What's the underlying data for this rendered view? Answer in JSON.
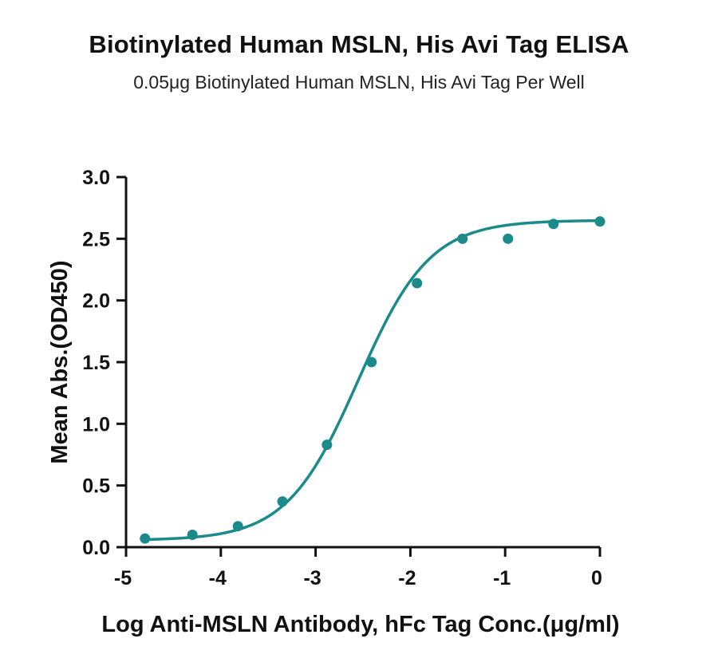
{
  "chart_data": {
    "type": "scatter",
    "title": "Biotinylated Human MSLN, His Avi Tag ELISA",
    "subtitle": "0.05μg Biotinylated Human MSLN, His Avi Tag Per Well",
    "xlabel": "Log Anti-MSLN Antibody, hFc Tag Conc.(μg/ml)",
    "ylabel": "Mean Abs.(OD450)",
    "xlim": [
      -5,
      0
    ],
    "ylim": [
      0,
      3.0
    ],
    "xticks": [
      "-5",
      "-4",
      "-3",
      "-2",
      "-1",
      "0"
    ],
    "yticks": [
      "0.0",
      "0.5",
      "1.0",
      "1.5",
      "2.0",
      "2.5",
      "3.0"
    ],
    "grid": false,
    "color": "#1a8a8a",
    "series": [
      {
        "x": [
          -4.8,
          -4.3,
          -3.82,
          -3.35,
          -2.88,
          -2.41,
          -1.93,
          -1.45,
          -0.97,
          -0.49,
          0.0
        ],
        "y": [
          0.07,
          0.1,
          0.17,
          0.37,
          0.83,
          1.5,
          2.14,
          2.5,
          2.5,
          2.62,
          2.64
        ],
        "fit": {
          "model": "4PL",
          "bottom": 0.055,
          "top": 2.65,
          "log_ec50": -2.55,
          "hill_slope": 1.15
        }
      }
    ]
  }
}
